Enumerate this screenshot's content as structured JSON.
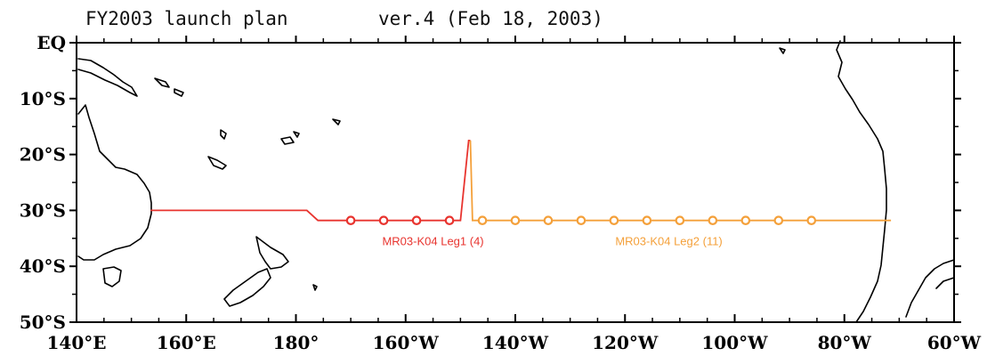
{
  "title": {
    "plan": "FY2003 launch plan",
    "version": "ver.4 (Feb 18, 2003)"
  },
  "map": {
    "lon_range": [
      140,
      300
    ],
    "lat_range": [
      0,
      -50
    ],
    "x_ticks": [
      {
        "lon": 140,
        "label": "140°E"
      },
      {
        "lon": 160,
        "label": "160°E"
      },
      {
        "lon": 180,
        "label": "180°"
      },
      {
        "lon": 200,
        "label": "160°W"
      },
      {
        "lon": 220,
        "label": "140°W"
      },
      {
        "lon": 240,
        "label": "120°W"
      },
      {
        "lon": 260,
        "label": "100°W"
      },
      {
        "lon": 280,
        "label": "80°W"
      },
      {
        "lon": 300,
        "label": "60°W"
      }
    ],
    "y_ticks": [
      {
        "lat": 0,
        "label": "EQ"
      },
      {
        "lat": -10,
        "label": "10°S"
      },
      {
        "lat": -20,
        "label": "20°S"
      },
      {
        "lat": -30,
        "label": "30°S"
      },
      {
        "lat": -40,
        "label": "40°S"
      },
      {
        "lat": -50,
        "label": "50°S"
      }
    ]
  },
  "legs": [
    {
      "label": "MR03-K04 Leg1 (4)",
      "color": "#e8342f",
      "track": [
        [
          153.5,
          -30
        ],
        [
          182,
          -30
        ],
        [
          184,
          -31.8
        ],
        [
          210,
          -31.8
        ],
        [
          211.5,
          -17.5
        ],
        [
          211.8,
          -17.5
        ]
      ],
      "stations": [
        [
          190,
          -31.8
        ],
        [
          196,
          -31.8
        ],
        [
          202,
          -31.8
        ],
        [
          208,
          -31.8
        ]
      ]
    },
    {
      "label": "MR03-K04 Leg2 (11)",
      "color": "#f4a03a",
      "track": [
        [
          211.8,
          -17.5
        ],
        [
          212.2,
          -31.8
        ],
        [
          288.5,
          -31.8
        ]
      ],
      "stations": [
        [
          214,
          -31.8
        ],
        [
          220,
          -31.8
        ],
        [
          226,
          -31.8
        ],
        [
          232,
          -31.8
        ],
        [
          238,
          -31.8
        ],
        [
          244,
          -31.8
        ],
        [
          250,
          -31.8
        ],
        [
          256,
          -31.8
        ],
        [
          262,
          -31.8
        ],
        [
          268,
          -31.8
        ],
        [
          274,
          -31.8
        ]
      ]
    }
  ]
}
